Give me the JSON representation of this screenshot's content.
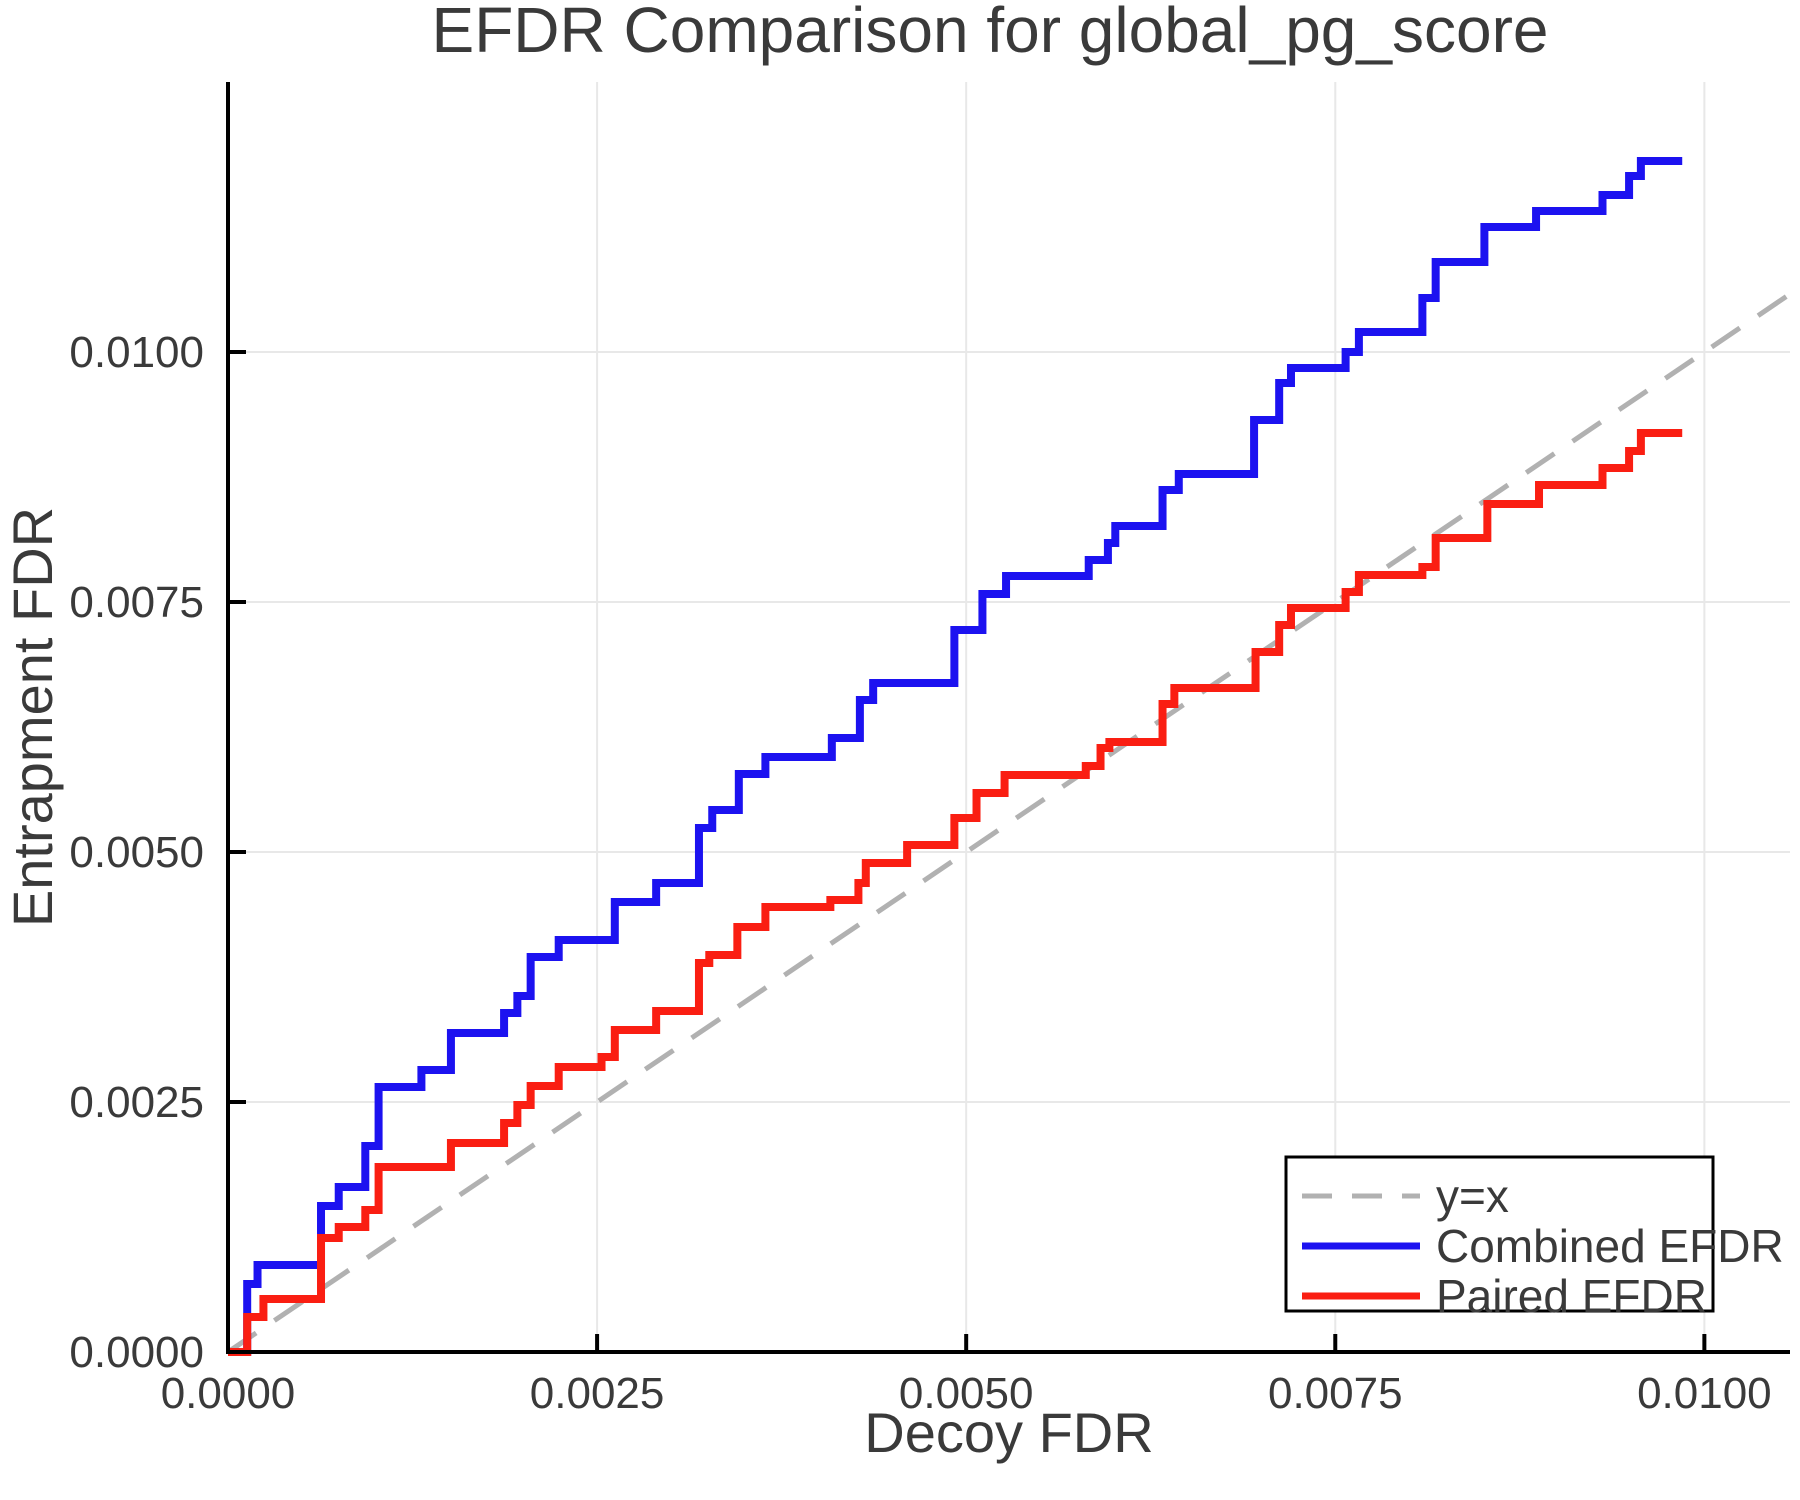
{
  "title": "EFDR Comparison for global_pg_score",
  "chart_data": {
    "type": "line",
    "subtype": "step-post",
    "title": "EFDR Comparison for global_pg_score",
    "xlabel": "Decoy FDR",
    "ylabel": "Entrapment FDR",
    "xlim": [
      0,
      0.01058
    ],
    "ylim": [
      0,
      0.0127
    ],
    "grid": true,
    "background": "#ffffff",
    "gridline_color": "#e8e8e8",
    "axis_color": "#000000",
    "text_color": "#3a3a3a",
    "x_ticks": {
      "values": [
        0,
        0.0025,
        0.005,
        0.0075,
        0.01
      ],
      "labels": [
        "0.0000",
        "0.0025",
        "0.0050",
        "0.0075",
        "0.0100"
      ]
    },
    "y_ticks": {
      "values": [
        0,
        0.0025,
        0.005,
        0.0075,
        0.01
      ],
      "labels": [
        "0.0000",
        "0.0025",
        "0.0050",
        "0.0075",
        "0.0100"
      ]
    },
    "reference_line": {
      "label": "y=x",
      "style": "dashed",
      "color": "#b1b1b1",
      "from": [
        0,
        0
      ],
      "to": [
        0.01058,
        0.01058
      ]
    },
    "legend": {
      "position": "bottom-right",
      "entries": [
        {
          "label": "y=x",
          "color": "#b1b1b1",
          "style": "dashed"
        },
        {
          "label": "Combined EFDR",
          "color": "#1c12f0",
          "style": "solid"
        },
        {
          "label": "Paired EFDR",
          "color": "#fa1e12",
          "style": "solid"
        }
      ]
    },
    "series": [
      {
        "name": "Combined EFDR",
        "color": "#1c12f0",
        "start": [
          0,
          0
        ],
        "x_end": 0.00985,
        "points": [
          [
            0.00013,
            0.00068
          ],
          [
            0.0002,
            0.00087
          ],
          [
            0.00063,
            0.00146
          ],
          [
            0.00075,
            0.00165
          ],
          [
            0.00093,
            0.00206
          ],
          [
            0.00102,
            0.00265
          ],
          [
            0.00131,
            0.00282
          ],
          [
            0.00151,
            0.00319
          ],
          [
            0.00187,
            0.00339
          ],
          [
            0.00196,
            0.00356
          ],
          [
            0.00205,
            0.00395
          ],
          [
            0.00224,
            0.00412
          ],
          [
            0.00262,
            0.0045
          ],
          [
            0.0029,
            0.00469
          ],
          [
            0.00319,
            0.00524
          ],
          [
            0.00328,
            0.00542
          ],
          [
            0.00346,
            0.00578
          ],
          [
            0.00364,
            0.00595
          ],
          [
            0.00409,
            0.00614
          ],
          [
            0.00428,
            0.00652
          ],
          [
            0.00437,
            0.00669
          ],
          [
            0.00492,
            0.00722
          ],
          [
            0.00511,
            0.00758
          ],
          [
            0.00527,
            0.00776
          ],
          [
            0.00583,
            0.00792
          ],
          [
            0.00596,
            0.00809
          ],
          [
            0.00601,
            0.00826
          ],
          [
            0.00633,
            0.00862
          ],
          [
            0.00644,
            0.00878
          ],
          [
            0.00695,
            0.00932
          ],
          [
            0.00712,
            0.00969
          ],
          [
            0.0072,
            0.00984
          ],
          [
            0.00757,
            0.01
          ],
          [
            0.00766,
            0.0102
          ],
          [
            0.00809,
            0.01054
          ],
          [
            0.00818,
            0.0109
          ],
          [
            0.00851,
            0.01125
          ],
          [
            0.00886,
            0.01141
          ],
          [
            0.00931,
            0.01157
          ],
          [
            0.00949,
            0.01176
          ],
          [
            0.00957,
            0.01191
          ]
        ]
      },
      {
        "name": "Paired EFDR",
        "color": "#fa1e12",
        "start": [
          0,
          0
        ],
        "x_end": 0.00985,
        "points": [
          [
            0.00013,
            0.00035
          ],
          [
            0.00024,
            0.00053
          ],
          [
            0.00063,
            0.00114
          ],
          [
            0.00075,
            0.00125
          ],
          [
            0.00093,
            0.00142
          ],
          [
            0.00102,
            0.00185
          ],
          [
            0.00151,
            0.00209
          ],
          [
            0.00187,
            0.00229
          ],
          [
            0.00196,
            0.00247
          ],
          [
            0.00205,
            0.00266
          ],
          [
            0.00224,
            0.00285
          ],
          [
            0.00253,
            0.00295
          ],
          [
            0.00262,
            0.00322
          ],
          [
            0.0029,
            0.00341
          ],
          [
            0.00319,
            0.00389
          ],
          [
            0.00326,
            0.00397
          ],
          [
            0.00345,
            0.00425
          ],
          [
            0.00364,
            0.00445
          ],
          [
            0.00408,
            0.00452
          ],
          [
            0.00427,
            0.00469
          ],
          [
            0.00432,
            0.00489
          ],
          [
            0.0046,
            0.00507
          ],
          [
            0.00492,
            0.00534
          ],
          [
            0.00507,
            0.00559
          ],
          [
            0.00526,
            0.00577
          ],
          [
            0.00581,
            0.00586
          ],
          [
            0.00591,
            0.00604
          ],
          [
            0.00597,
            0.0061
          ],
          [
            0.00633,
            0.00648
          ],
          [
            0.00641,
            0.00664
          ],
          [
            0.00696,
            0.007
          ],
          [
            0.00712,
            0.00727
          ],
          [
            0.0072,
            0.00744
          ],
          [
            0.00757,
            0.0076
          ],
          [
            0.00766,
            0.00777
          ],
          [
            0.00809,
            0.00785
          ],
          [
            0.00818,
            0.00814
          ],
          [
            0.00853,
            0.00848
          ],
          [
            0.00888,
            0.00867
          ],
          [
            0.00931,
            0.00884
          ],
          [
            0.00949,
            0.00901
          ],
          [
            0.00957,
            0.00919
          ]
        ]
      }
    ]
  }
}
